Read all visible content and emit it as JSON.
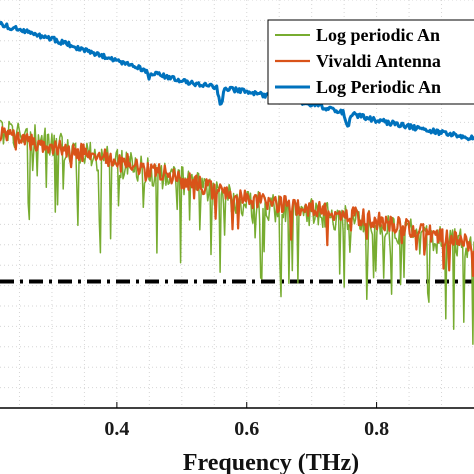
{
  "chart_data": {
    "type": "line",
    "xlabel": "Frequency (THz)",
    "x_ticks": [
      "0.4",
      "0.6",
      "0.8"
    ],
    "x_tick_values": [
      0.4,
      0.6,
      0.8
    ],
    "xlim": [
      0.22,
      0.95
    ],
    "ylim": [
      0,
      10
    ],
    "grid": "on (major and minor, dotted)",
    "legend_position": "top-right",
    "series": [
      {
        "name": "Log periodic An",
        "color": "#77AC30",
        "line_width": 1.5,
        "noise": 0.35,
        "spike_rate": 0.14,
        "spike_depth": 1.4,
        "x": [
          0.22,
          0.3,
          0.4,
          0.5,
          0.6,
          0.7,
          0.8,
          0.9,
          0.95
        ],
        "values": [
          6.8,
          6.5,
          6.0,
          5.6,
          5.0,
          4.8,
          4.5,
          4.1,
          4.0
        ]
      },
      {
        "name": "Vivaldi Antenna",
        "color": "#D95319",
        "line_width": 2.2,
        "noise": 0.22,
        "spike_rate": 0.05,
        "spike_depth": 0.6,
        "x": [
          0.22,
          0.3,
          0.4,
          0.5,
          0.6,
          0.7,
          0.8,
          0.9,
          0.95
        ],
        "values": [
          6.7,
          6.4,
          6.1,
          5.6,
          5.1,
          4.9,
          4.6,
          4.2,
          4.0
        ]
      },
      {
        "name": "Log Periodic An",
        "color": "#0072BD",
        "line_width": 3,
        "noise": 0.06,
        "spike_rate": 0,
        "spike_depth": 0,
        "x": [
          0.22,
          0.3,
          0.4,
          0.5,
          0.6,
          0.7,
          0.8,
          0.9,
          0.95
        ],
        "values": [
          9.4,
          9.05,
          8.5,
          8.0,
          7.75,
          7.45,
          7.05,
          6.75,
          6.6
        ],
        "dips": [
          {
            "x": 0.56,
            "depth": 0.5
          },
          {
            "x": 0.755,
            "depth": 0.4
          },
          {
            "x": 0.45,
            "depth": 0.15
          }
        ]
      }
    ],
    "reference_line": {
      "style": "dash-dot",
      "color": "#000000",
      "y": 3.1
    }
  }
}
